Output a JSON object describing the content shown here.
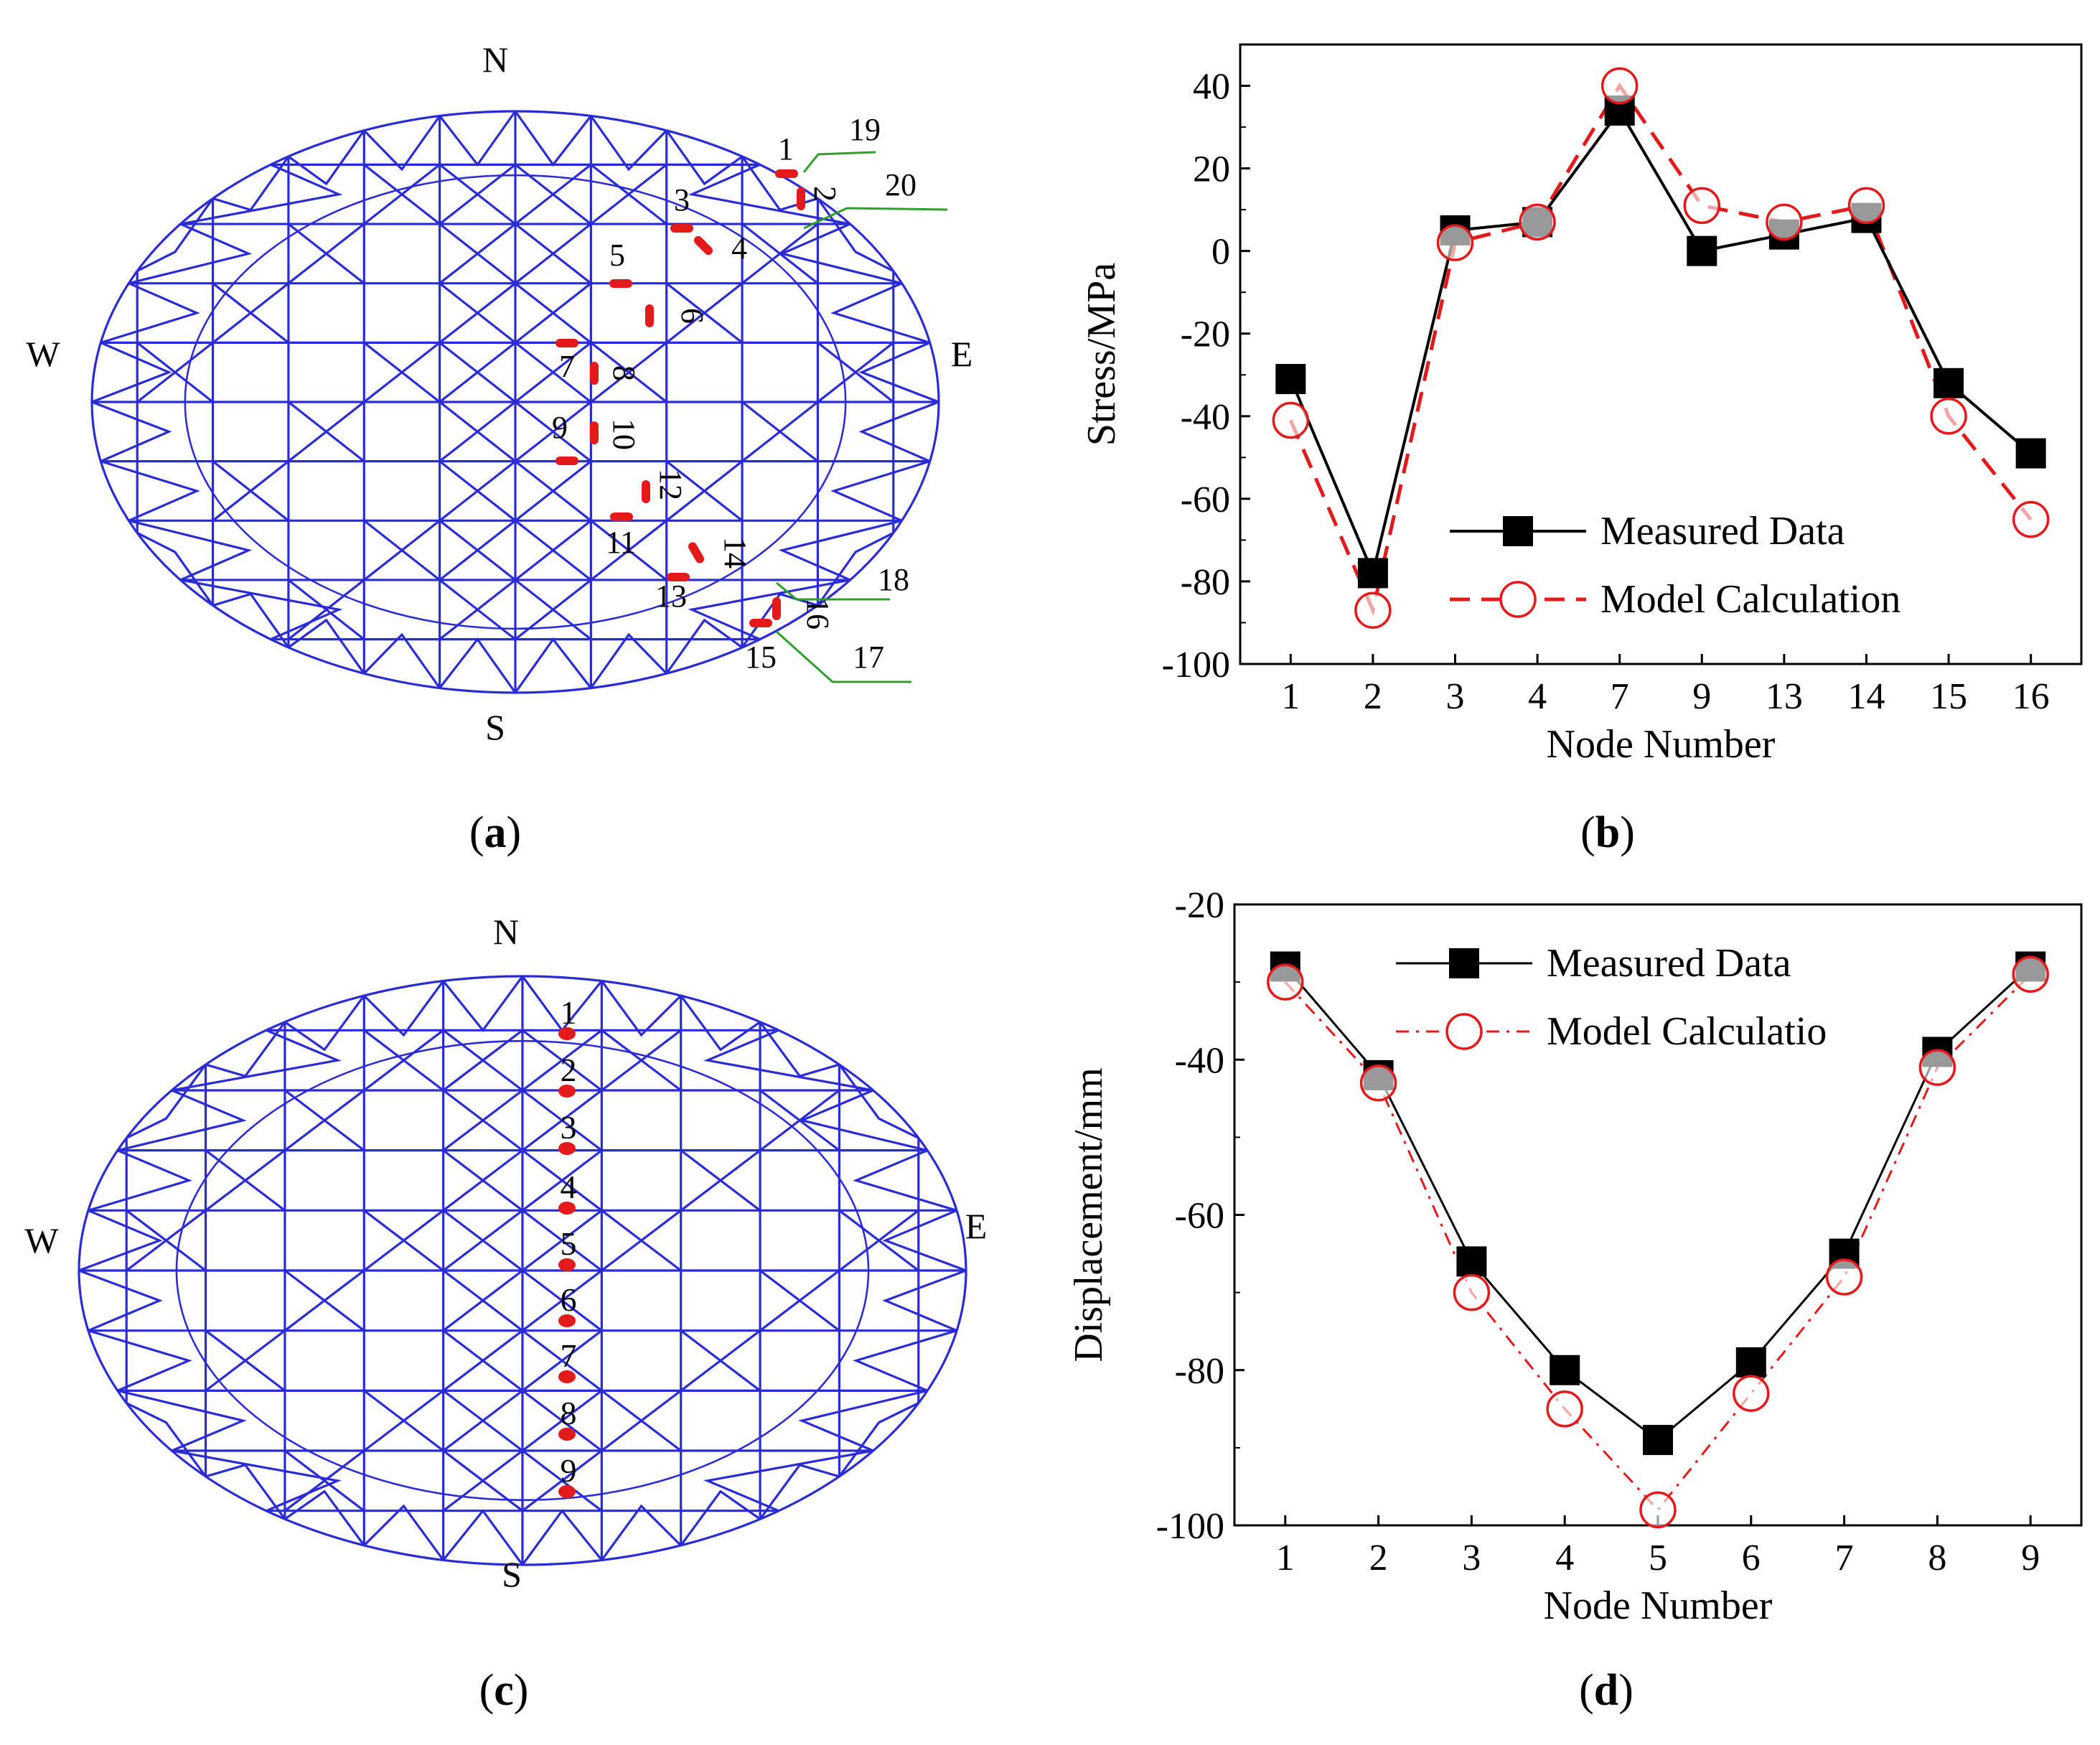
{
  "panels": {
    "a": {
      "label": "(a)",
      "letter": "a"
    },
    "b": {
      "label": "(b)",
      "letter": "b"
    },
    "c": {
      "label": "(c)",
      "letter": "c"
    },
    "d": {
      "label": "(d)",
      "letter": "d"
    }
  },
  "compass": {
    "n": "N",
    "s": "S",
    "w": "W",
    "e": "E"
  },
  "grid_a": {
    "stress_node_labels": [
      "1",
      "2",
      "3",
      "4",
      "5",
      "6",
      "7",
      "8",
      "9",
      "10",
      "11",
      "12",
      "13",
      "14",
      "15",
      "16"
    ],
    "support_labels": [
      "17",
      "18",
      "19",
      "20"
    ]
  },
  "grid_c": {
    "displacement_node_labels": [
      "1",
      "2",
      "3",
      "4",
      "5",
      "6",
      "7",
      "8",
      "9"
    ]
  },
  "colors": {
    "grid": "#2b2bd6",
    "marker": "#e31a1c",
    "support": "#2e9e2e",
    "measured": "#000000",
    "model": "#e31a1c"
  },
  "chart_data": [
    {
      "type": "line",
      "panel": "b",
      "categories": [
        "1",
        "2",
        "3",
        "4",
        "7",
        "9",
        "13",
        "14",
        "15",
        "16"
      ],
      "series": [
        {
          "name": "Measured Data",
          "values": [
            -31,
            -78,
            5,
            7,
            34,
            0,
            4,
            8,
            -32,
            -49
          ]
        },
        {
          "name": "Model Calculation",
          "values": [
            -41,
            -87,
            2,
            7,
            40,
            11,
            7,
            11,
            -40,
            -65
          ]
        }
      ],
      "title": "",
      "xlabel": "Node Number",
      "ylabel": "Stress/MPa",
      "ylim": [
        -100,
        50
      ],
      "yticks": [
        -100,
        -80,
        -60,
        -40,
        -20,
        0,
        20,
        40
      ],
      "legend": "bottom-right"
    },
    {
      "type": "line",
      "panel": "d",
      "categories": [
        "1",
        "2",
        "3",
        "4",
        "5",
        "6",
        "7",
        "8",
        "9"
      ],
      "series": [
        {
          "name": "Measured Data",
          "values": [
            -28,
            -42,
            -66,
            -80,
            -89,
            -79,
            -65,
            -39,
            -28
          ]
        },
        {
          "name": "Model Calculatio",
          "values": [
            -30,
            -43,
            -70,
            -85,
            -98,
            -83,
            -68,
            -41,
            -29
          ]
        }
      ],
      "title": "",
      "xlabel": "Node Number",
      "ylabel": "Displacement/mm",
      "ylim": [
        -100,
        -20
      ],
      "yticks": [
        -100,
        -80,
        -60,
        -40,
        -20
      ],
      "legend": "top-right"
    }
  ]
}
